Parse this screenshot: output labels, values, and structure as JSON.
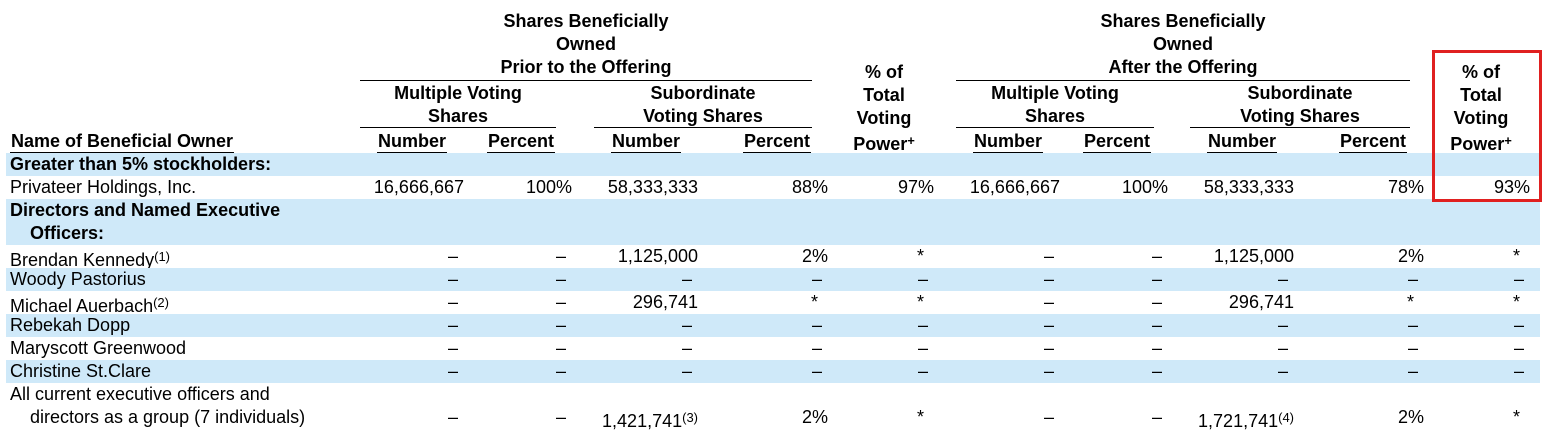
{
  "header": {
    "group_prior": "Shares Beneficially Owned Prior to the Offering",
    "group_prior_lines": [
      "Shares Beneficially",
      "Owned",
      "Prior to the Offering"
    ],
    "group_after_lines": [
      "Shares Beneficially",
      "Owned",
      "After the Offering"
    ],
    "multiple_voting_lines": [
      "Multiple Voting",
      "Shares"
    ],
    "subordinate_voting_lines": [
      "Subordinate",
      "Voting Shares"
    ],
    "total_voting_lines": [
      "% of",
      "Total",
      "Voting",
      "Power"
    ],
    "power_mark": "+",
    "name_col": "Name of Beneficial Owner",
    "number": "Number",
    "percent": "Percent"
  },
  "rows": [
    {
      "type": "section",
      "name": "Greater than 5% stockholders:"
    },
    {
      "type": "data",
      "name": "Privateer Holdings, Inc.",
      "fn": "",
      "vals": [
        "16,666,667",
        "100%",
        "58,333,333",
        "88%",
        "97%",
        "16,666,667",
        "100%",
        "58,333,333",
        "78%",
        "93%"
      ]
    },
    {
      "type": "section2",
      "name_lines": [
        "Directors and Named Executive",
        "Officers:"
      ]
    },
    {
      "type": "data",
      "name": "Brendan Kennedy",
      "fn": "(1)",
      "vals": [
        "–",
        "–",
        "1,125,000",
        "2%",
        "*",
        "–",
        "–",
        "1,125,000",
        "2%",
        "*"
      ]
    },
    {
      "type": "data",
      "name": "Woody Pastorius",
      "fn": "",
      "vals": [
        "–",
        "–",
        "–",
        "–",
        "–",
        "–",
        "–",
        "–",
        "–",
        "–"
      ]
    },
    {
      "type": "data",
      "name": "Michael Auerbach",
      "fn": "(2)",
      "vals": [
        "–",
        "–",
        "296,741",
        "*",
        "*",
        "–",
        "–",
        "296,741",
        "*",
        "*"
      ]
    },
    {
      "type": "data",
      "name": "Rebekah Dopp",
      "fn": "",
      "vals": [
        "–",
        "–",
        "–",
        "–",
        "–",
        "–",
        "–",
        "–",
        "–",
        "–"
      ]
    },
    {
      "type": "data",
      "name": "Maryscott Greenwood",
      "fn": "",
      "vals": [
        "–",
        "–",
        "–",
        "–",
        "–",
        "–",
        "–",
        "–",
        "–",
        "–"
      ]
    },
    {
      "type": "data",
      "name": "Christine St.Clare",
      "fn": "",
      "vals": [
        "–",
        "–",
        "–",
        "–",
        "–",
        "–",
        "–",
        "–",
        "–",
        "–"
      ]
    },
    {
      "type": "group",
      "name_lines": [
        "All current executive officers and",
        "directors as a group (7 individuals)"
      ],
      "vals": [
        "–",
        "–",
        "1,421,741",
        "2%",
        "*",
        "–",
        "–",
        "1,721,741",
        "2%",
        "*"
      ],
      "fns": [
        "",
        "",
        "(3)",
        "",
        "",
        "",
        "",
        "(4)",
        "",
        ""
      ]
    }
  ]
}
